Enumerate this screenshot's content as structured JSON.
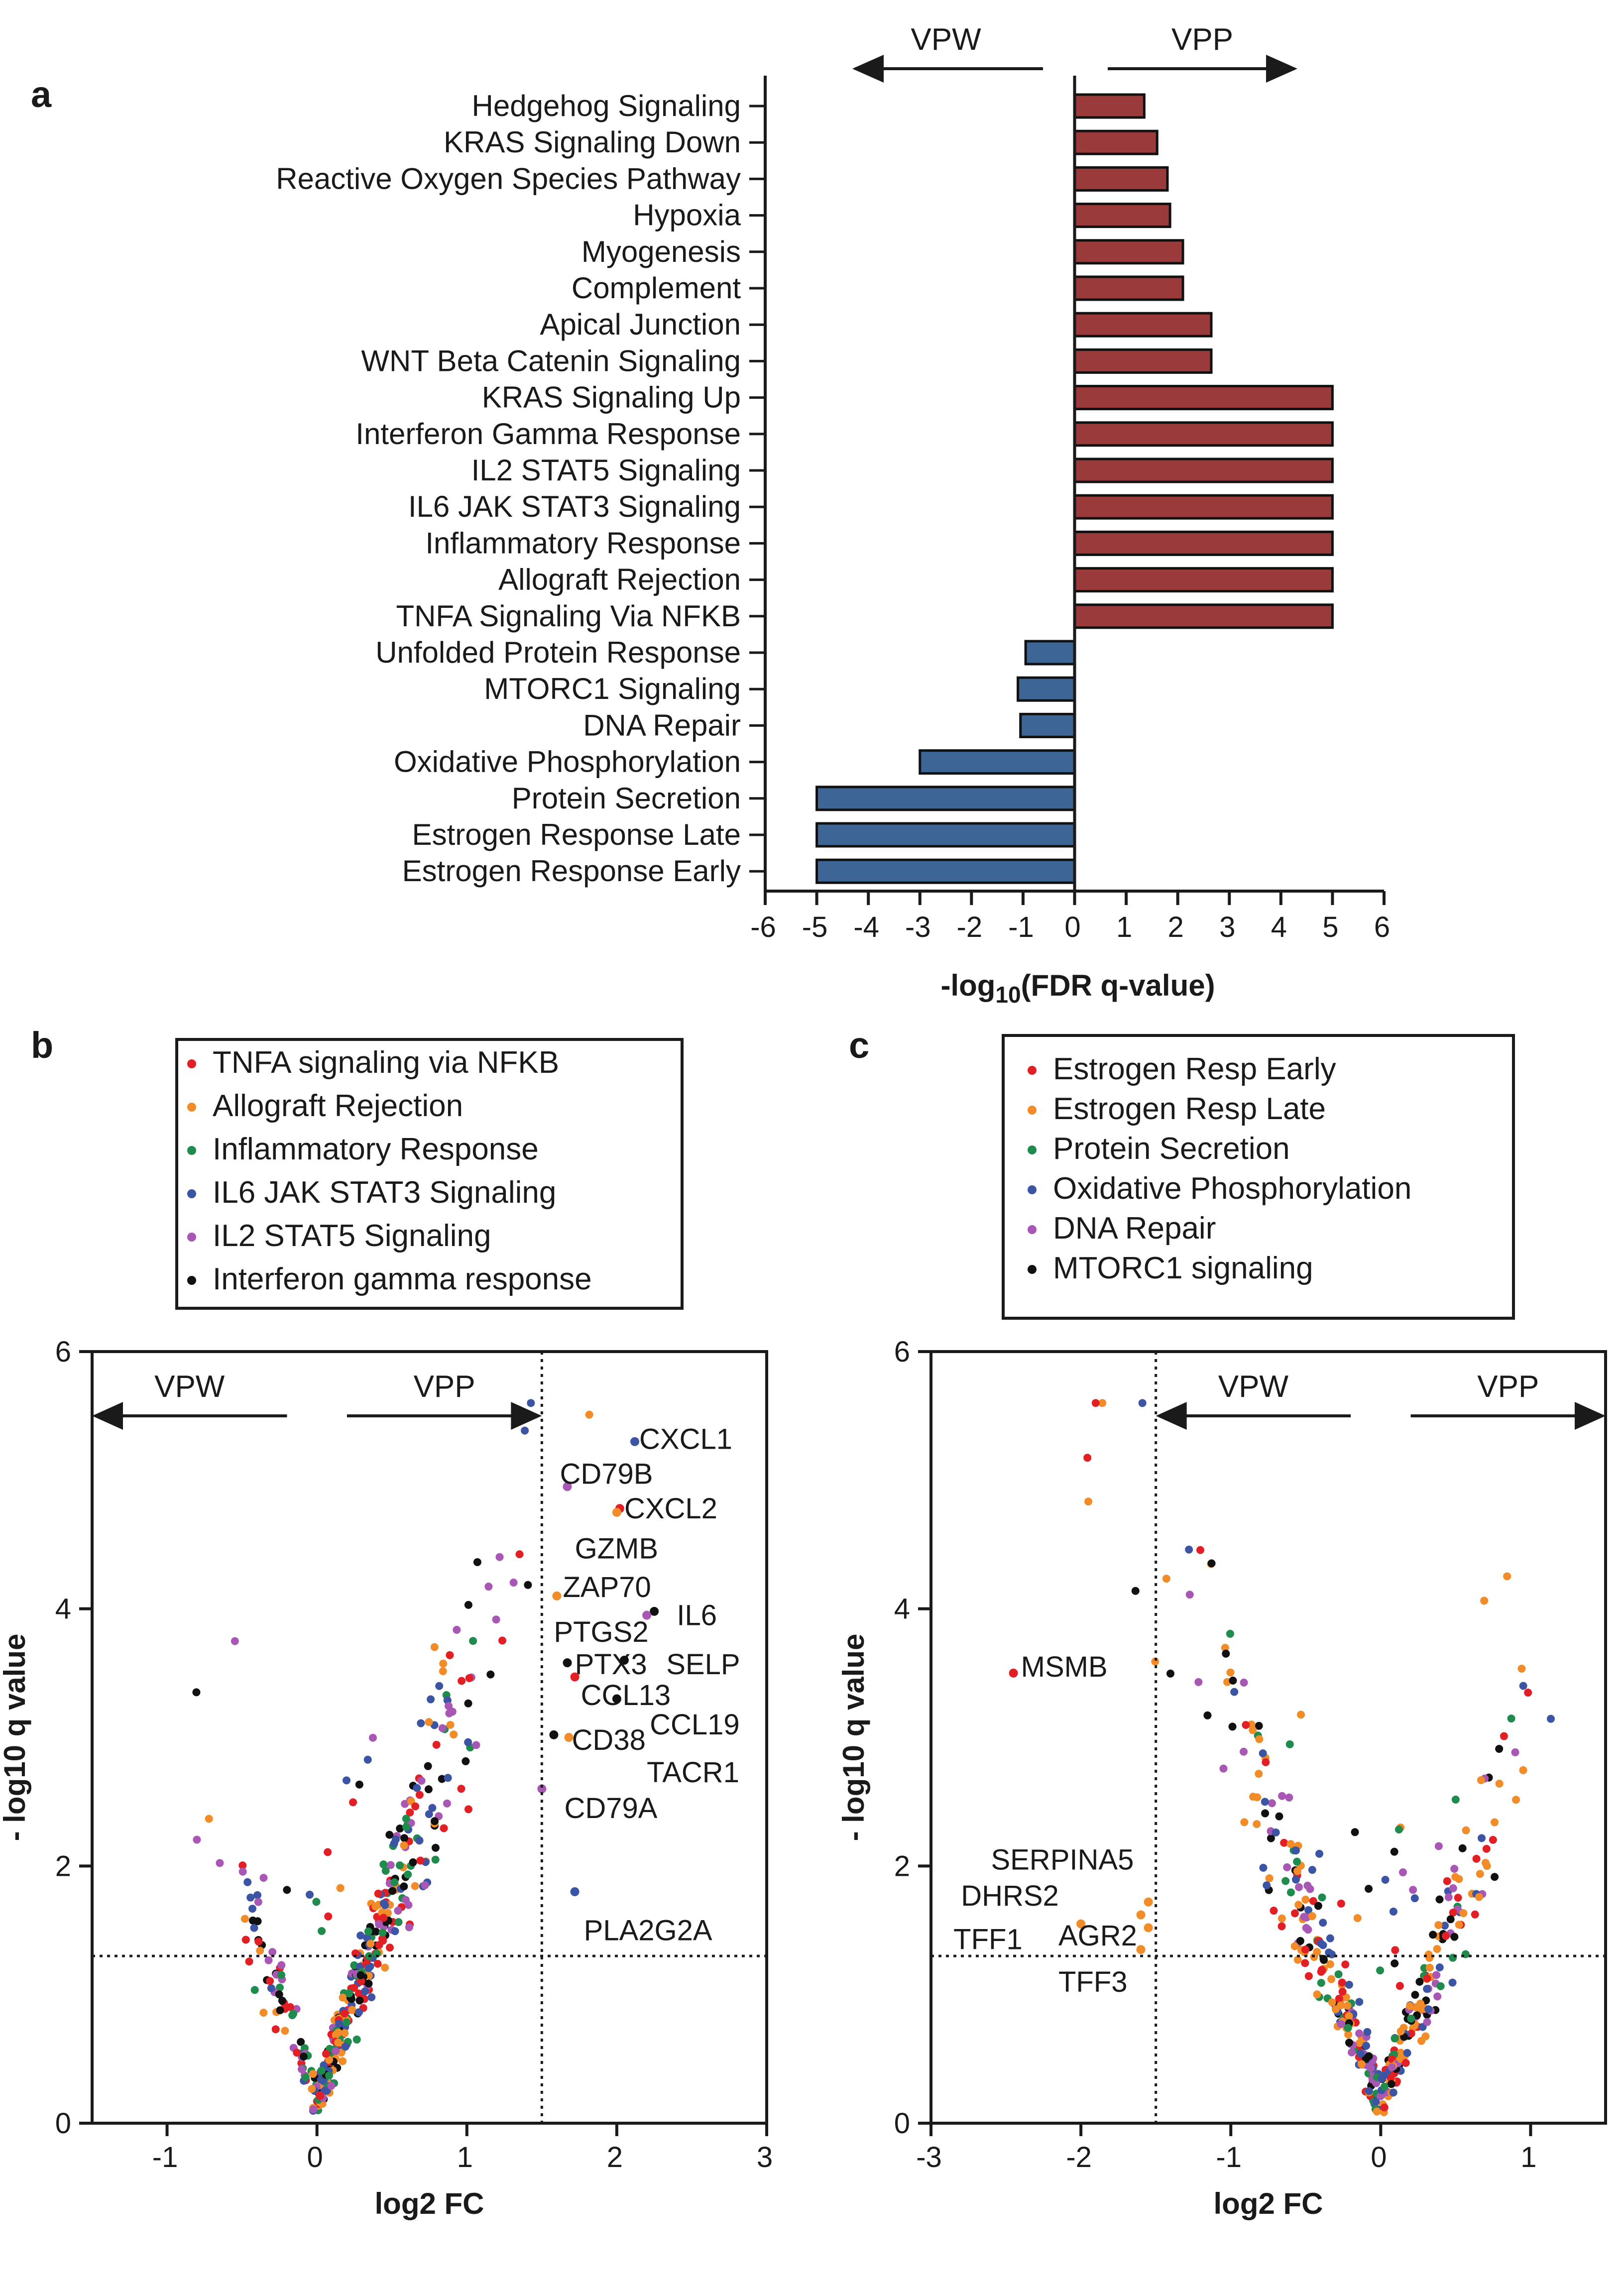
{
  "colors": {
    "up_bar": "#9b3a3a",
    "down_bar": "#3d6595",
    "red": "#e31f26",
    "orange": "#f28c28",
    "green": "#1f8b4c",
    "blue": "#3b55a4",
    "purple": "#a857b4",
    "black": "#111111"
  },
  "panels": {
    "a": "a",
    "b": "b",
    "c": "c"
  },
  "chart_data": [
    {
      "type": "bar",
      "id": "a",
      "orientation": "horizontal",
      "direction_left": "VPW",
      "direction_right": "VPP",
      "xlabel_prefix": "-log",
      "xlabel_sub": "10",
      "xlabel_suffix": "(FDR q-value)",
      "xlim": [
        -6,
        6
      ],
      "xticks": [
        "-6",
        "-5",
        "-4",
        "-3",
        "-2",
        "-1",
        "0",
        "1",
        "2",
        "3",
        "4",
        "5",
        "6"
      ],
      "categories": [
        "Hedgehog Signaling",
        "KRAS Signaling Down",
        "Reactive Oxygen Species Pathway",
        "Hypoxia",
        "Myogenesis",
        "Complement",
        "Apical Junction",
        "WNT Beta Catenin Signaling",
        "KRAS Signaling Up",
        "Interferon Gamma Response",
        "IL2 STAT5 Signaling",
        "IL6 JAK STAT3 Signaling",
        "Inflammatory Response",
        "Allograft Rejection",
        "TNFA Signaling Via NFKB",
        "Unfolded Protein Response",
        "MTORC1 Signaling",
        "DNA Repair",
        "Oxidative Phosphorylation",
        "Protein Secretion",
        "Estrogen Response Late",
        "Estrogen Response Early"
      ],
      "values": [
        1.35,
        1.6,
        1.8,
        1.85,
        2.1,
        2.1,
        2.65,
        2.65,
        5,
        5,
        5,
        5,
        5,
        5,
        5,
        -0.95,
        -1.1,
        -1.05,
        -3.0,
        -5,
        -5,
        -5
      ]
    },
    {
      "type": "scatter",
      "id": "b",
      "legend": [
        {
          "label": "TNFA signaling via NFKB",
          "color": "red"
        },
        {
          "label": "Allograft Rejection",
          "color": "orange"
        },
        {
          "label": "Inflammatory Response",
          "color": "green"
        },
        {
          "label": "IL6 JAK STAT3 Signaling",
          "color": "blue"
        },
        {
          "label": "IL2 STAT5 Signaling",
          "color": "purple"
        },
        {
          "label": "Interferon gamma response",
          "color": "black"
        }
      ],
      "xlim": [
        -1.5,
        3
      ],
      "ylim": [
        0,
        6
      ],
      "xticks": [
        -1,
        0,
        1,
        2,
        3
      ],
      "yticks": [
        0,
        2,
        4,
        6
      ],
      "xlabel": "log2 FC",
      "ylabel": "- log10 q value",
      "threshold_y": 1.3,
      "threshold_x": 1.5,
      "arrow_left": "VPW",
      "arrow_right": "VPP",
      "arrow_left_x": [
        -1.5,
        -0.2
      ],
      "arrow_right_x": [
        0.2,
        1.5
      ],
      "arrow_y": 5.5,
      "labeled_points": [
        {
          "label": "CXCL1",
          "x": 2.12,
          "y": 5.3,
          "color": "blue",
          "lx": 2.15,
          "ly": 5.32
        },
        {
          "label": "CD79B",
          "x": 1.67,
          "y": 4.95,
          "color": "purple",
          "lx": 1.62,
          "ly": 5.05
        },
        {
          "label": "CXCL2",
          "x": 2.02,
          "y": 4.78,
          "color": "red",
          "lx": 2.05,
          "ly": 4.78
        },
        {
          "label": "GZMB",
          "x": 2.0,
          "y": 4.75,
          "color": "orange",
          "lx": 1.72,
          "ly": 4.47
        },
        {
          "label": "ZAP70",
          "x": 1.6,
          "y": 4.1,
          "color": "orange",
          "lx": 1.64,
          "ly": 4.17
        },
        {
          "label": "IL6",
          "x": 2.25,
          "y": 3.98,
          "color": "black",
          "lx": 2.4,
          "ly": 3.95
        },
        {
          "label": "PTGS2",
          "x": 2.2,
          "y": 3.95,
          "color": "purple",
          "lx": 1.58,
          "ly": 3.82
        },
        {
          "label": "PTX3",
          "x": 1.67,
          "y": 3.58,
          "color": "black",
          "lx": 1.72,
          "ly": 3.57
        },
        {
          "label": "SELP",
          "x": 2.05,
          "y": 3.6,
          "color": "black",
          "lx": 2.33,
          "ly": 3.57
        },
        {
          "label": "CCL13",
          "x": 1.72,
          "y": 3.47,
          "color": "red",
          "lx": 1.76,
          "ly": 3.33
        },
        {
          "label": "CCL19",
          "x": 2.0,
          "y": 3.3,
          "color": "black",
          "lx": 2.22,
          "ly": 3.1
        },
        {
          "label": "CD38",
          "x": 1.68,
          "y": 3.0,
          "color": "orange",
          "lx": 1.7,
          "ly": 2.98
        },
        {
          "label": "TACR1",
          "x": 1.58,
          "y": 3.02,
          "color": "black",
          "lx": 2.2,
          "ly": 2.73
        },
        {
          "label": "CD79A",
          "x": 1.5,
          "y": 2.6,
          "color": "purple",
          "lx": 1.65,
          "ly": 2.45
        },
        {
          "label": "PLA2G2A",
          "x": 1.72,
          "y": 1.8,
          "color": "blue",
          "lx": 1.78,
          "ly": 1.5
        }
      ]
    },
    {
      "type": "scatter",
      "id": "c",
      "legend": [
        {
          "label": "Estrogen Resp Early",
          "color": "red"
        },
        {
          "label": "Estrogen Resp Late",
          "color": "orange"
        },
        {
          "label": "Protein Secretion",
          "color": "green"
        },
        {
          "label": "Oxidative Phosphorylation",
          "color": "blue"
        },
        {
          "label": "DNA Repair",
          "color": "purple"
        },
        {
          "label": "MTORC1 signaling",
          "color": "black"
        }
      ],
      "xlim": [
        -3,
        1.5
      ],
      "ylim": [
        0,
        6
      ],
      "xticks": [
        -3,
        -2,
        -1,
        0,
        1
      ],
      "yticks": [
        0,
        2,
        4,
        6
      ],
      "xlabel": "log2 FC",
      "ylabel": "- log10 q value",
      "threshold_y": 1.3,
      "threshold_x": -1.5,
      "arrow_left": "VPW",
      "arrow_right": "VPP",
      "arrow_left_x": [
        -1.5,
        -0.2
      ],
      "arrow_right_x": [
        0.2,
        1.5
      ],
      "arrow_y": 5.5,
      "labeled_points": [
        {
          "label": "MSMB",
          "x": -2.45,
          "y": 3.5,
          "color": "red",
          "lx": -2.4,
          "ly": 3.55
        },
        {
          "label": "SERPINA5",
          "x": -1.55,
          "y": 1.72,
          "color": "orange",
          "lx": -2.6,
          "ly": 2.05
        },
        {
          "label": "DHRS2",
          "x": -1.6,
          "y": 1.62,
          "color": "orange",
          "lx": -2.8,
          "ly": 1.77
        },
        {
          "label": "TFF1",
          "x": -2.0,
          "y": 1.55,
          "color": "orange",
          "lx": -2.85,
          "ly": 1.43
        },
        {
          "label": "AGR2",
          "x": -1.55,
          "y": 1.52,
          "color": "orange",
          "lx": -2.15,
          "ly": 1.46
        },
        {
          "label": "TFF3",
          "x": -1.6,
          "y": 1.35,
          "color": "orange",
          "lx": -2.15,
          "ly": 1.1
        }
      ]
    }
  ]
}
